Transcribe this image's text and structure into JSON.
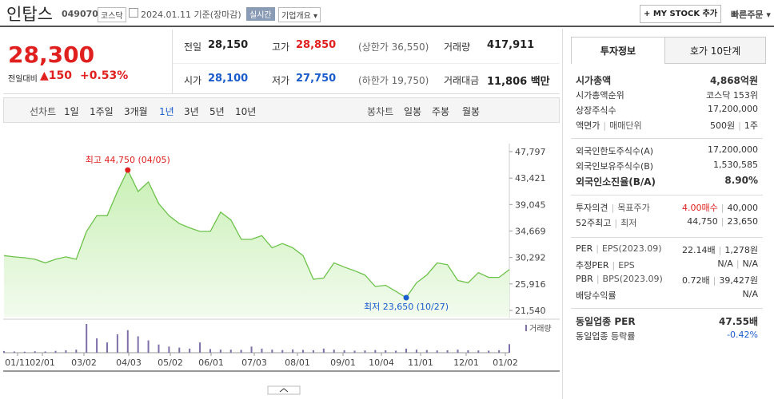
{
  "header": {
    "name": "인탑스",
    "code": "049070",
    "market": "코스닥",
    "date": "2024.01.11 기준(장마감)",
    "realtime": "실시간",
    "company_info": "기업개요",
    "mystock": "MY STOCK 추가",
    "quick_order": "빠른주문"
  },
  "price": {
    "current": "28,300",
    "change_label": "전일대비",
    "change": "▲150",
    "rate": "+0.53%"
  },
  "summary": {
    "rows": [
      [
        {
          "label": "전일",
          "value": "28,150"
        },
        {
          "label": "고가",
          "value": "28,850",
          "extra": "(상한가 36,550)",
          "color": "#e0201e"
        },
        {
          "label": "거래량",
          "value": "417,911"
        }
      ],
      [
        {
          "label": "시가",
          "value": "28,100",
          "color": "#1a5ccc"
        },
        {
          "label": "저가",
          "value": "27,750",
          "extra": "(하한가 19,750)",
          "color": "#1a5ccc"
        },
        {
          "label": "거래대금",
          "value": "11,806 백만"
        }
      ]
    ]
  },
  "toolbar": {
    "line_label": "선차트",
    "periods": [
      "1일",
      "1주일",
      "3개월",
      "1년",
      "3년",
      "5년",
      "10년"
    ],
    "active_period": "1년",
    "candle_label": "봉차트",
    "candles": [
      "일봉",
      "주봉",
      "월봉"
    ]
  },
  "chart": {
    "ylim": [
      21540,
      47797
    ],
    "yticks": [
      {
        "value": 47797,
        "label": "47,797"
      },
      {
        "value": 43421,
        "label": "43,421"
      },
      {
        "value": 39045,
        "label": "39,045"
      },
      {
        "value": 34669,
        "label": "34,669"
      },
      {
        "value": 30292,
        "label": "30,292"
      },
      {
        "value": 25916,
        "label": "25,916"
      },
      {
        "value": 21540,
        "label": "21,540"
      }
    ],
    "xlabels": [
      "01/11",
      "02/01",
      "03/02",
      "04/03",
      "05/02",
      "06/01",
      "07/03",
      "08/01",
      "09/01",
      "10/04",
      "11/01",
      "12/01",
      "01/02"
    ],
    "color": "#6cc24a",
    "values": [
      30600,
      30400,
      30250,
      30000,
      29400,
      30000,
      30400,
      30000,
      34600,
      37200,
      37200,
      41200,
      44750,
      41200,
      42800,
      39200,
      37200,
      35900,
      35200,
      34600,
      34600,
      37800,
      36500,
      33300,
      33300,
      33900,
      31900,
      32600,
      31900,
      30600,
      26700,
      26900,
      29400,
      28700,
      28100,
      27400,
      25500,
      25700,
      24700,
      23650,
      26100,
      27400,
      29400,
      29100,
      26500,
      26100,
      27800,
      27000,
      27000,
      28300
    ],
    "high": {
      "label": "최고 44,750 (04/05)",
      "value": 44750,
      "color": "#e0201e"
    },
    "low": {
      "label": "최저 23,650 (10/27)",
      "value": 23650,
      "color": "#1a5ccc"
    },
    "volume_label": "거래량",
    "volume_color": "#7f6fa8",
    "volume": [
      80000,
      60000,
      50000,
      70000,
      60000,
      90000,
      120000,
      150000,
      1400000,
      700000,
      500000,
      900000,
      1100000,
      800000,
      600000,
      400000,
      300000,
      250000,
      200000,
      500000,
      180000,
      150000,
      150000,
      140000,
      300000,
      200000,
      150000,
      130000,
      160000,
      140000,
      120000,
      200000,
      150000,
      120000,
      100000,
      110000,
      130000,
      120000,
      100000,
      200000,
      150000,
      130000,
      110000,
      120000,
      150000,
      120000,
      110000,
      100000,
      120000,
      417911
    ]
  },
  "invest": {
    "tabs": [
      "투자정보",
      "호가 10단계"
    ],
    "sections": [
      [
        {
          "label": [
            "시가총액"
          ],
          "value": [
            "4,868억원"
          ],
          "bold": true
        },
        {
          "label": [
            "시가총액순위"
          ],
          "value": [
            "코스닥 153위"
          ]
        },
        {
          "label": [
            "상장주식수"
          ],
          "value": [
            "17,200,000"
          ]
        },
        {
          "label": [
            "액면가",
            "매매단위"
          ],
          "value": [
            "500원",
            "1주"
          ]
        }
      ],
      [
        {
          "label": [
            "외국인한도주식수(A)"
          ],
          "value": [
            "17,200,000"
          ]
        },
        {
          "label": [
            "외국인보유주식수(B)"
          ],
          "value": [
            "1,530,585"
          ]
        },
        {
          "label": [
            "외국인소진율(B/A)"
          ],
          "value": [
            "8.90%"
          ],
          "bold": true
        }
      ],
      [
        {
          "label": [
            "투자의견",
            "목표주가"
          ],
          "value": [
            "4.00매수",
            "40,000"
          ],
          "color": "#e0201e"
        },
        {
          "label": [
            "52주최고",
            "최저"
          ],
          "value": [
            "44,750",
            "23,650"
          ]
        }
      ],
      [
        {
          "label": [
            "PER",
            "EPS(2023.09)"
          ],
          "value": [
            "22.14배",
            "1,278원"
          ]
        },
        {
          "label": [
            "추정PER",
            "EPS"
          ],
          "value": [
            "N/A",
            "N/A"
          ]
        },
        {
          "label": [
            "PBR",
            "BPS(2023.09)"
          ],
          "value": [
            "0.72배",
            "39,427원"
          ]
        },
        {
          "label": [
            "배당수익률"
          ],
          "value": [
            "N/A"
          ]
        }
      ],
      [
        {
          "label": [
            "동일업종 PER"
          ],
          "value": [
            "47.55배"
          ],
          "bold": true
        },
        {
          "label": [
            "동일업종 등락률"
          ],
          "value": [
            "-0.42%"
          ],
          "color": "#1a5ccc"
        }
      ]
    ]
  }
}
